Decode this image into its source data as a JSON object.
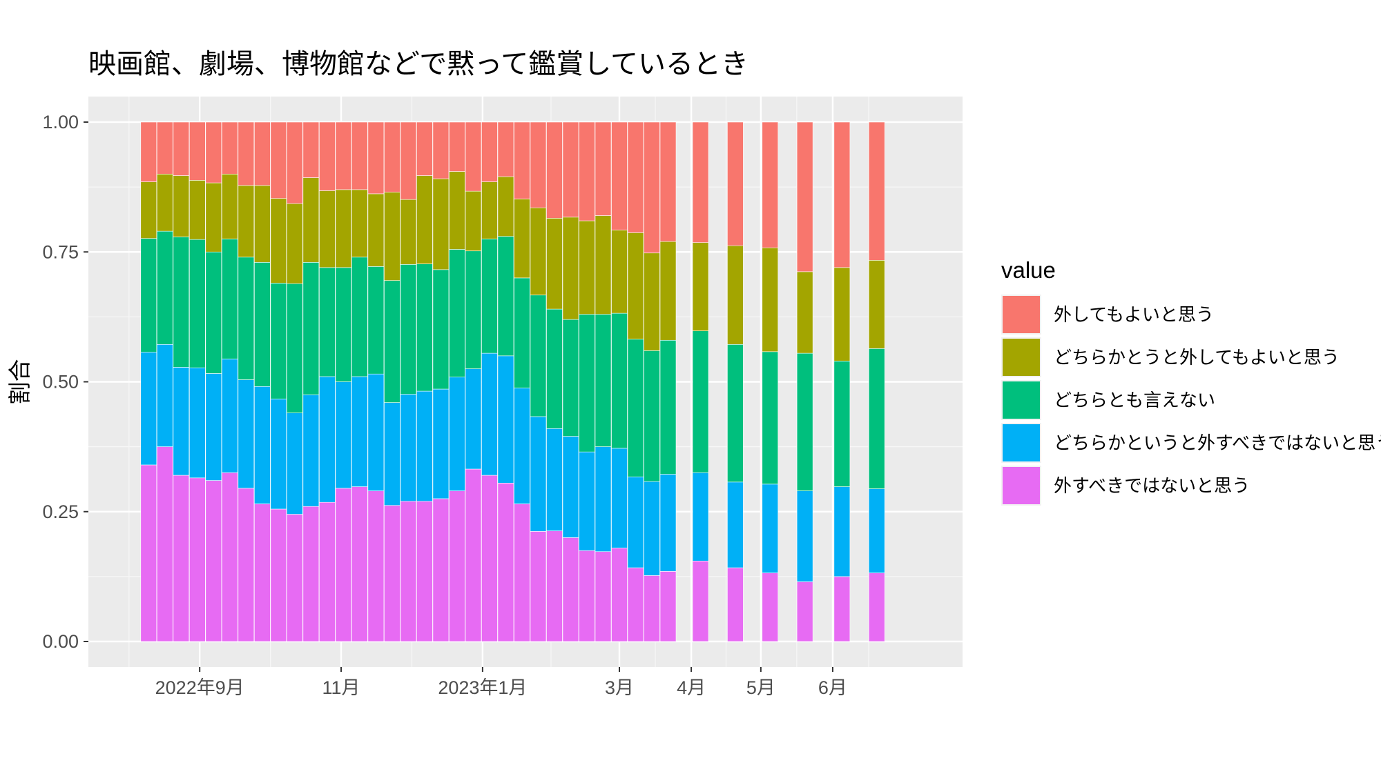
{
  "chart_data": {
    "type": "bar",
    "stacked": true,
    "title": "映画館、劇場、博物館などで黙って鑑賞しているとき",
    "ylabel": "割合",
    "xlabel": "",
    "ylim": [
      0,
      1
    ],
    "yticks": [
      0,
      0.25,
      0.5,
      0.75,
      1
    ],
    "ytick_labels": [
      "0.00",
      "0.25",
      "0.50",
      "0.75",
      "1.00"
    ],
    "x_axis": "date",
    "xlim": [
      "2022-07-15",
      "2023-07-27"
    ],
    "xticks": [
      {
        "label": "2022年9月",
        "date": "2022-09-01"
      },
      {
        "label": "11月",
        "date": "2022-11-01"
      },
      {
        "label": "2023年1月",
        "date": "2023-01-01"
      },
      {
        "label": "3月",
        "date": "2023-03-01"
      },
      {
        "label": "4月",
        "date": "2023-04-01"
      },
      {
        "label": "5月",
        "date": "2023-05-01"
      },
      {
        "label": "6月",
        "date": "2023-06-01"
      }
    ],
    "grid": true,
    "legend_position": "right",
    "legend_title": "value",
    "x": [
      "2022-08-10",
      "2022-08-17",
      "2022-08-24",
      "2022-08-31",
      "2022-09-07",
      "2022-09-14",
      "2022-09-21",
      "2022-09-28",
      "2022-10-05",
      "2022-10-12",
      "2022-10-19",
      "2022-10-26",
      "2022-11-02",
      "2022-11-09",
      "2022-11-16",
      "2022-11-23",
      "2022-11-30",
      "2022-12-07",
      "2022-12-14",
      "2022-12-21",
      "2022-12-28",
      "2023-01-04",
      "2023-01-11",
      "2023-01-18",
      "2023-01-25",
      "2023-02-01",
      "2023-02-08",
      "2023-02-15",
      "2023-02-22",
      "2023-03-01",
      "2023-03-08",
      "2023-03-15",
      "2023-03-22",
      "2023-04-05",
      "2023-04-20",
      "2023-05-05",
      "2023-05-20",
      "2023-06-05",
      "2023-06-20"
    ],
    "series": [
      {
        "name": "外すべきではないと思う",
        "color": "#E76BF3",
        "values": [
          0.34,
          0.375,
          0.32,
          0.315,
          0.31,
          0.325,
          0.295,
          0.265,
          0.255,
          0.245,
          0.26,
          0.268,
          0.295,
          0.298,
          0.29,
          0.262,
          0.27,
          0.27,
          0.275,
          0.29,
          0.332,
          0.32,
          0.305,
          0.265,
          0.212,
          0.213,
          0.2,
          0.175,
          0.173,
          0.18,
          0.142,
          0.127,
          0.135,
          0.155,
          0.142,
          0.132,
          0.115,
          0.125,
          0.132
        ]
      },
      {
        "name": "どちらかというと外すべきではないと思う",
        "color": "#00B0F6",
        "values": [
          0.217,
          0.197,
          0.208,
          0.212,
          0.206,
          0.219,
          0.209,
          0.226,
          0.212,
          0.195,
          0.215,
          0.242,
          0.205,
          0.212,
          0.225,
          0.198,
          0.206,
          0.212,
          0.211,
          0.219,
          0.193,
          0.235,
          0.245,
          0.223,
          0.221,
          0.197,
          0.195,
          0.19,
          0.202,
          0.192,
          0.175,
          0.181,
          0.187,
          0.17,
          0.165,
          0.171,
          0.175,
          0.173,
          0.162
        ]
      },
      {
        "name": "どちらとも言えない",
        "color": "#00BF7D",
        "values": [
          0.219,
          0.218,
          0.251,
          0.247,
          0.234,
          0.231,
          0.236,
          0.239,
          0.223,
          0.249,
          0.255,
          0.21,
          0.22,
          0.23,
          0.207,
          0.235,
          0.25,
          0.245,
          0.23,
          0.246,
          0.227,
          0.22,
          0.23,
          0.212,
          0.234,
          0.23,
          0.225,
          0.265,
          0.255,
          0.26,
          0.265,
          0.252,
          0.258,
          0.273,
          0.265,
          0.255,
          0.265,
          0.242,
          0.27
        ]
      },
      {
        "name": "どちらかとうと外してもよいと思う",
        "color": "#A3A500",
        "values": [
          0.109,
          0.11,
          0.118,
          0.114,
          0.133,
          0.125,
          0.138,
          0.148,
          0.163,
          0.154,
          0.163,
          0.148,
          0.15,
          0.13,
          0.14,
          0.17,
          0.125,
          0.17,
          0.175,
          0.15,
          0.115,
          0.11,
          0.115,
          0.152,
          0.168,
          0.175,
          0.197,
          0.18,
          0.19,
          0.16,
          0.205,
          0.188,
          0.19,
          0.17,
          0.19,
          0.2,
          0.157,
          0.18,
          0.17
        ]
      },
      {
        "name": "外してもよいと思う",
        "color": "#F8766D",
        "values": [
          0.115,
          0.1,
          0.103,
          0.112,
          0.117,
          0.1,
          0.122,
          0.122,
          0.147,
          0.157,
          0.107,
          0.132,
          0.13,
          0.13,
          0.138,
          0.135,
          0.149,
          0.103,
          0.109,
          0.095,
          0.133,
          0.115,
          0.105,
          0.148,
          0.165,
          0.185,
          0.183,
          0.19,
          0.18,
          0.208,
          0.213,
          0.252,
          0.23,
          0.232,
          0.238,
          0.242,
          0.288,
          0.28,
          0.266
        ]
      }
    ],
    "legend_order": [
      "外してもよいと思う",
      "どちらかとうと外してもよいと思う",
      "どちらとも言えない",
      "どちらかというと外すべきではないと思う",
      "外すべきではないと思う"
    ]
  }
}
